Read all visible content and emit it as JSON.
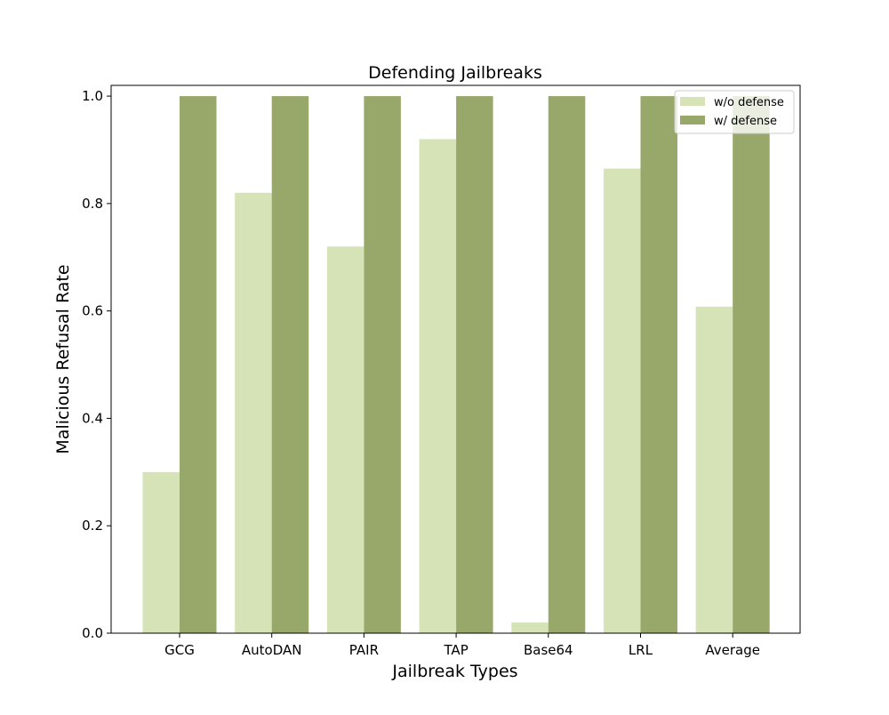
{
  "chart_data": {
    "type": "bar",
    "title": "Defending Jailbreaks",
    "xlabel": "Jailbreak Types",
    "ylabel": "Malicious Refusal Rate",
    "categories": [
      "GCG",
      "AutoDAN",
      "PAIR",
      "TAP",
      "Base64",
      "LRL",
      "Average"
    ],
    "series": [
      {
        "name": "w/o defense",
        "color": "#d6e3b7",
        "values": [
          0.3,
          0.82,
          0.72,
          0.92,
          0.02,
          0.865,
          0.608
        ]
      },
      {
        "name": "w/ defense",
        "color": "#98a86a",
        "values": [
          1.0,
          1.0,
          1.0,
          1.0,
          1.0,
          1.0,
          1.0
        ]
      }
    ],
    "ylim": [
      0,
      1.02
    ],
    "yticks": [
      "0.0",
      "0.2",
      "0.4",
      "0.6",
      "0.8",
      "1.0"
    ],
    "grid": false,
    "legend_position": "top-right"
  }
}
